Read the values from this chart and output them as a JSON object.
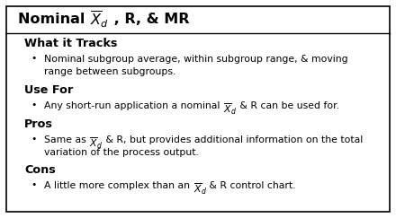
{
  "title_plain": "Nominal ",
  "title_math": "$\\overline{X}_{d}$",
  "title_suffix": " , R, & MR",
  "title_fontsize": 11.5,
  "body_fontsize": 7.8,
  "heading_fontsize": 9.2,
  "background_color": "#ffffff",
  "border_color": "#000000",
  "sections": [
    {
      "heading": "What it Tracks",
      "bullets": [
        "Nominal subgroup average, within subgroup range, & moving\nrange between subgroups."
      ],
      "bullets_rich": []
    },
    {
      "heading": "Use For",
      "bullets": [],
      "bullets_rich": [
        [
          "Any short-run application a nominal ",
          "$\\overline{X}_{d}$",
          " & R can be used for."
        ]
      ]
    },
    {
      "heading": "Pros",
      "bullets": [],
      "bullets_rich": [
        [
          "Same as ",
          "$\\overline{X}_{d}$",
          " & R, but provides additional information on the total\nvariation of the process output."
        ]
      ]
    },
    {
      "heading": "Cons",
      "bullets": [],
      "bullets_rich": [
        [
          "A little more complex than an ",
          "$\\overline{X}_{d}$",
          " & R control chart."
        ]
      ]
    }
  ]
}
